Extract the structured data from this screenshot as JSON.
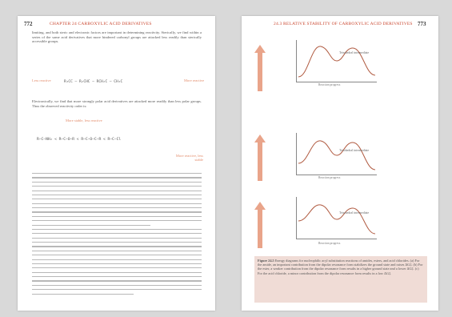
{
  "left_page": {
    "page_number": "772",
    "running_head": "CHAPTER 24  CARBOXYLIC ACID DERIVATIVES",
    "intro_text": "limiting, and both steric and electronic factors are important in determining reactivity. Sterically, we find within a series of the same acid derivatives that more hindered carbonyl groups are attacked less readily than sterically accessible groups.",
    "row1_left_label": "Less reactive",
    "row1_right_label": "More reactive",
    "row1_formula": "R₃CC  —  R₂CHC  —  RCH₂C  —  CH₃C",
    "para2": "Electronically, we find that more strongly polar acid derivatives are attacked more readily than less polar groups. Thus the observed reactivity order is:",
    "row2_top_label": "More stable, less reactive",
    "row2_formula": "R—C—NH₂  <  R—C—O—R  <  R—C—O—C—R  <  R—C—Cl",
    "row2_bottom_label": "More reactive, less stable"
  },
  "right_page": {
    "page_number": "773",
    "running_head": "24.3  RELATIVE STABILITY OF CARBOXYLIC ACID DERIVATIVES",
    "panel_labels": [
      "Tetrahedral intermediate",
      "Tetrahedral intermediate",
      "Tetrahedral intermediate"
    ],
    "x_axis_label": "Reaction progress",
    "caption_title": "Figure 24.5",
    "caption_text": "Energy diagrams for nucleophilic acyl substitution reactions of amides, esters, and acid chlorides. (a) For the amide, an important contribution from the dipolar resonance form stabilizes the ground state and raises ΔG‡. (b) For the ester, a weaker contribution from the dipolar resonance form results in a higher ground state and a lower ΔG‡. (c) For the acid chloride, a minor contribution from the dipolar resonance form results in a low ΔG‡."
  },
  "colors": {
    "accent_red": "#c9442c",
    "light_red": "#e28b6a",
    "caption_bg": "#f0dcd6"
  }
}
